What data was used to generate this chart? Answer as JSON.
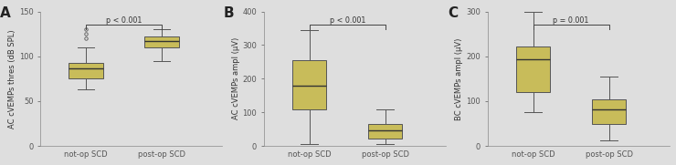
{
  "panels": [
    {
      "label": "A",
      "ylabel": "AC cVEMPs thres (dB SPL)",
      "ylim": [
        0,
        150
      ],
      "yticks": [
        0,
        50,
        100,
        150
      ],
      "p_text": "p < 0.001",
      "groups": [
        "not-op SCD",
        "post-op SCD"
      ],
      "boxes": [
        {
          "q1": 75,
          "median": 87,
          "q3": 93,
          "whislo": 63,
          "whishi": 110,
          "fliers": [
            120,
            125,
            130
          ]
        },
        {
          "q1": 110,
          "median": 117,
          "q3": 122,
          "whislo": 95,
          "whishi": 130,
          "fliers": []
        }
      ]
    },
    {
      "label": "B",
      "ylabel": "AC cVEMPs ampl (μV)",
      "ylim": [
        0,
        400
      ],
      "yticks": [
        0,
        100,
        200,
        300,
        400
      ],
      "p_text": "p < 0.001",
      "groups": [
        "not-op SCD",
        "post-op SCD"
      ],
      "boxes": [
        {
          "q1": 110,
          "median": 178,
          "q3": 255,
          "whislo": 5,
          "whishi": 345,
          "fliers": []
        },
        {
          "q1": 22,
          "median": 47,
          "q3": 65,
          "whislo": 5,
          "whishi": 110,
          "fliers": []
        }
      ]
    },
    {
      "label": "C",
      "ylabel": "BC cVEMPs ampl (μV)",
      "ylim": [
        0,
        300
      ],
      "yticks": [
        0,
        100,
        200,
        300
      ],
      "p_text": "p = 0.001",
      "groups": [
        "not-op SCD",
        "post-op SCD"
      ],
      "boxes": [
        {
          "q1": 120,
          "median": 193,
          "q3": 222,
          "whislo": 75,
          "whishi": 300,
          "fliers": []
        },
        {
          "q1": 50,
          "median": 82,
          "q3": 103,
          "whislo": 12,
          "whishi": 155,
          "fliers": []
        }
      ]
    }
  ],
  "box_facecolor": "#c8bc5a",
  "box_edgecolor": "#555555",
  "median_color": "#333333",
  "whisker_color": "#555555",
  "flier_color": "#555555",
  "bg_color": "#dedede",
  "axes_bg": "#dedede",
  "spine_color": "#888888",
  "tick_color": "#555555",
  "box_width": 0.45,
  "positions": [
    1,
    2
  ],
  "xlim": [
    0.4,
    2.8
  ]
}
